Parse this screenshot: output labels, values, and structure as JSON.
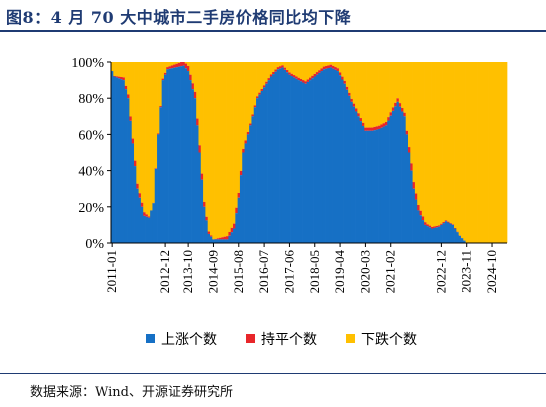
{
  "title": "图8：4 月 70 大中城市二手房价格同比均下降",
  "source": "数据来源：Wind、开源证券研究所",
  "chart_data": {
    "type": "area",
    "stacked": true,
    "normalized": true,
    "ylim": [
      0,
      100
    ],
    "yticks": [
      0,
      20,
      40,
      60,
      80,
      100
    ],
    "ytick_labels": [
      "0%",
      "20%",
      "40%",
      "60%",
      "80%",
      "100%"
    ],
    "x_start": "2011-01",
    "x_end": "2025-04",
    "xtick_labels": [
      "2011-01",
      "2012-12",
      "2013-10",
      "2014-09",
      "2015-08",
      "2016-07",
      "2017-06",
      "2018-05",
      "2019-04",
      "2020-03",
      "2021-02",
      "2022-12",
      "2023-11",
      "2024-10"
    ],
    "legend_position": "bottom",
    "series": [
      {
        "name": "上涨个数",
        "color": "#1670c5",
        "anchors": [
          [
            "2011-01",
            95
          ],
          [
            "2011-02",
            92
          ],
          [
            "2011-06",
            90
          ],
          [
            "2011-08",
            80
          ],
          [
            "2011-10",
            55
          ],
          [
            "2011-12",
            30
          ],
          [
            "2012-03",
            15
          ],
          [
            "2012-05",
            14
          ],
          [
            "2012-07",
            22
          ],
          [
            "2012-09",
            60
          ],
          [
            "2012-11",
            90
          ],
          [
            "2013-01",
            96
          ],
          [
            "2013-08",
            98
          ],
          [
            "2013-10",
            95
          ],
          [
            "2014-01",
            80
          ],
          [
            "2014-03",
            50
          ],
          [
            "2014-05",
            20
          ],
          [
            "2014-07",
            5
          ],
          [
            "2014-09",
            2
          ],
          [
            "2015-03",
            2
          ],
          [
            "2015-06",
            8
          ],
          [
            "2015-08",
            25
          ],
          [
            "2015-10",
            50
          ],
          [
            "2016-01",
            65
          ],
          [
            "2016-04",
            80
          ],
          [
            "2016-07",
            86
          ],
          [
            "2016-10",
            92
          ],
          [
            "2017-01",
            96
          ],
          [
            "2017-03",
            97
          ],
          [
            "2017-06",
            93
          ],
          [
            "2017-10",
            90
          ],
          [
            "2018-01",
            88
          ],
          [
            "2018-05",
            92
          ],
          [
            "2018-09",
            96
          ],
          [
            "2018-12",
            97
          ],
          [
            "2019-03",
            95
          ],
          [
            "2019-06",
            88
          ],
          [
            "2019-09",
            78
          ],
          [
            "2019-12",
            70
          ],
          [
            "2020-03",
            62
          ],
          [
            "2020-06",
            62
          ],
          [
            "2020-09",
            63
          ],
          [
            "2020-12",
            65
          ],
          [
            "2021-03",
            73
          ],
          [
            "2021-05",
            78
          ],
          [
            "2021-08",
            70
          ],
          [
            "2021-10",
            50
          ],
          [
            "2021-12",
            30
          ],
          [
            "2022-02",
            18
          ],
          [
            "2022-05",
            10
          ],
          [
            "2022-08",
            8
          ],
          [
            "2022-11",
            9
          ],
          [
            "2023-02",
            12
          ],
          [
            "2023-05",
            10
          ],
          [
            "2023-08",
            4
          ],
          [
            "2023-11",
            0
          ],
          [
            "2025-04",
            0
          ]
        ]
      },
      {
        "name": "持平个数",
        "color": "#e8262a",
        "anchors": [
          [
            "2011-01",
            0
          ],
          [
            "2011-11",
            3
          ],
          [
            "2012-03",
            2
          ],
          [
            "2012-06",
            0
          ],
          [
            "2012-12",
            1
          ],
          [
            "2013-11",
            3
          ],
          [
            "2014-03",
            4
          ],
          [
            "2014-06",
            2
          ],
          [
            "2014-09",
            0
          ],
          [
            "2015-07",
            3
          ],
          [
            "2015-10",
            2
          ],
          [
            "2016-01",
            1
          ],
          [
            "2021-09",
            2
          ],
          [
            "2021-11",
            4
          ],
          [
            "2022-02",
            3
          ],
          [
            "2022-06",
            1
          ],
          [
            "2023-11",
            0
          ],
          [
            "2025-04",
            0
          ]
        ]
      },
      {
        "name": "下跌个数",
        "color": "#ffc000",
        "remainder": true
      }
    ]
  }
}
